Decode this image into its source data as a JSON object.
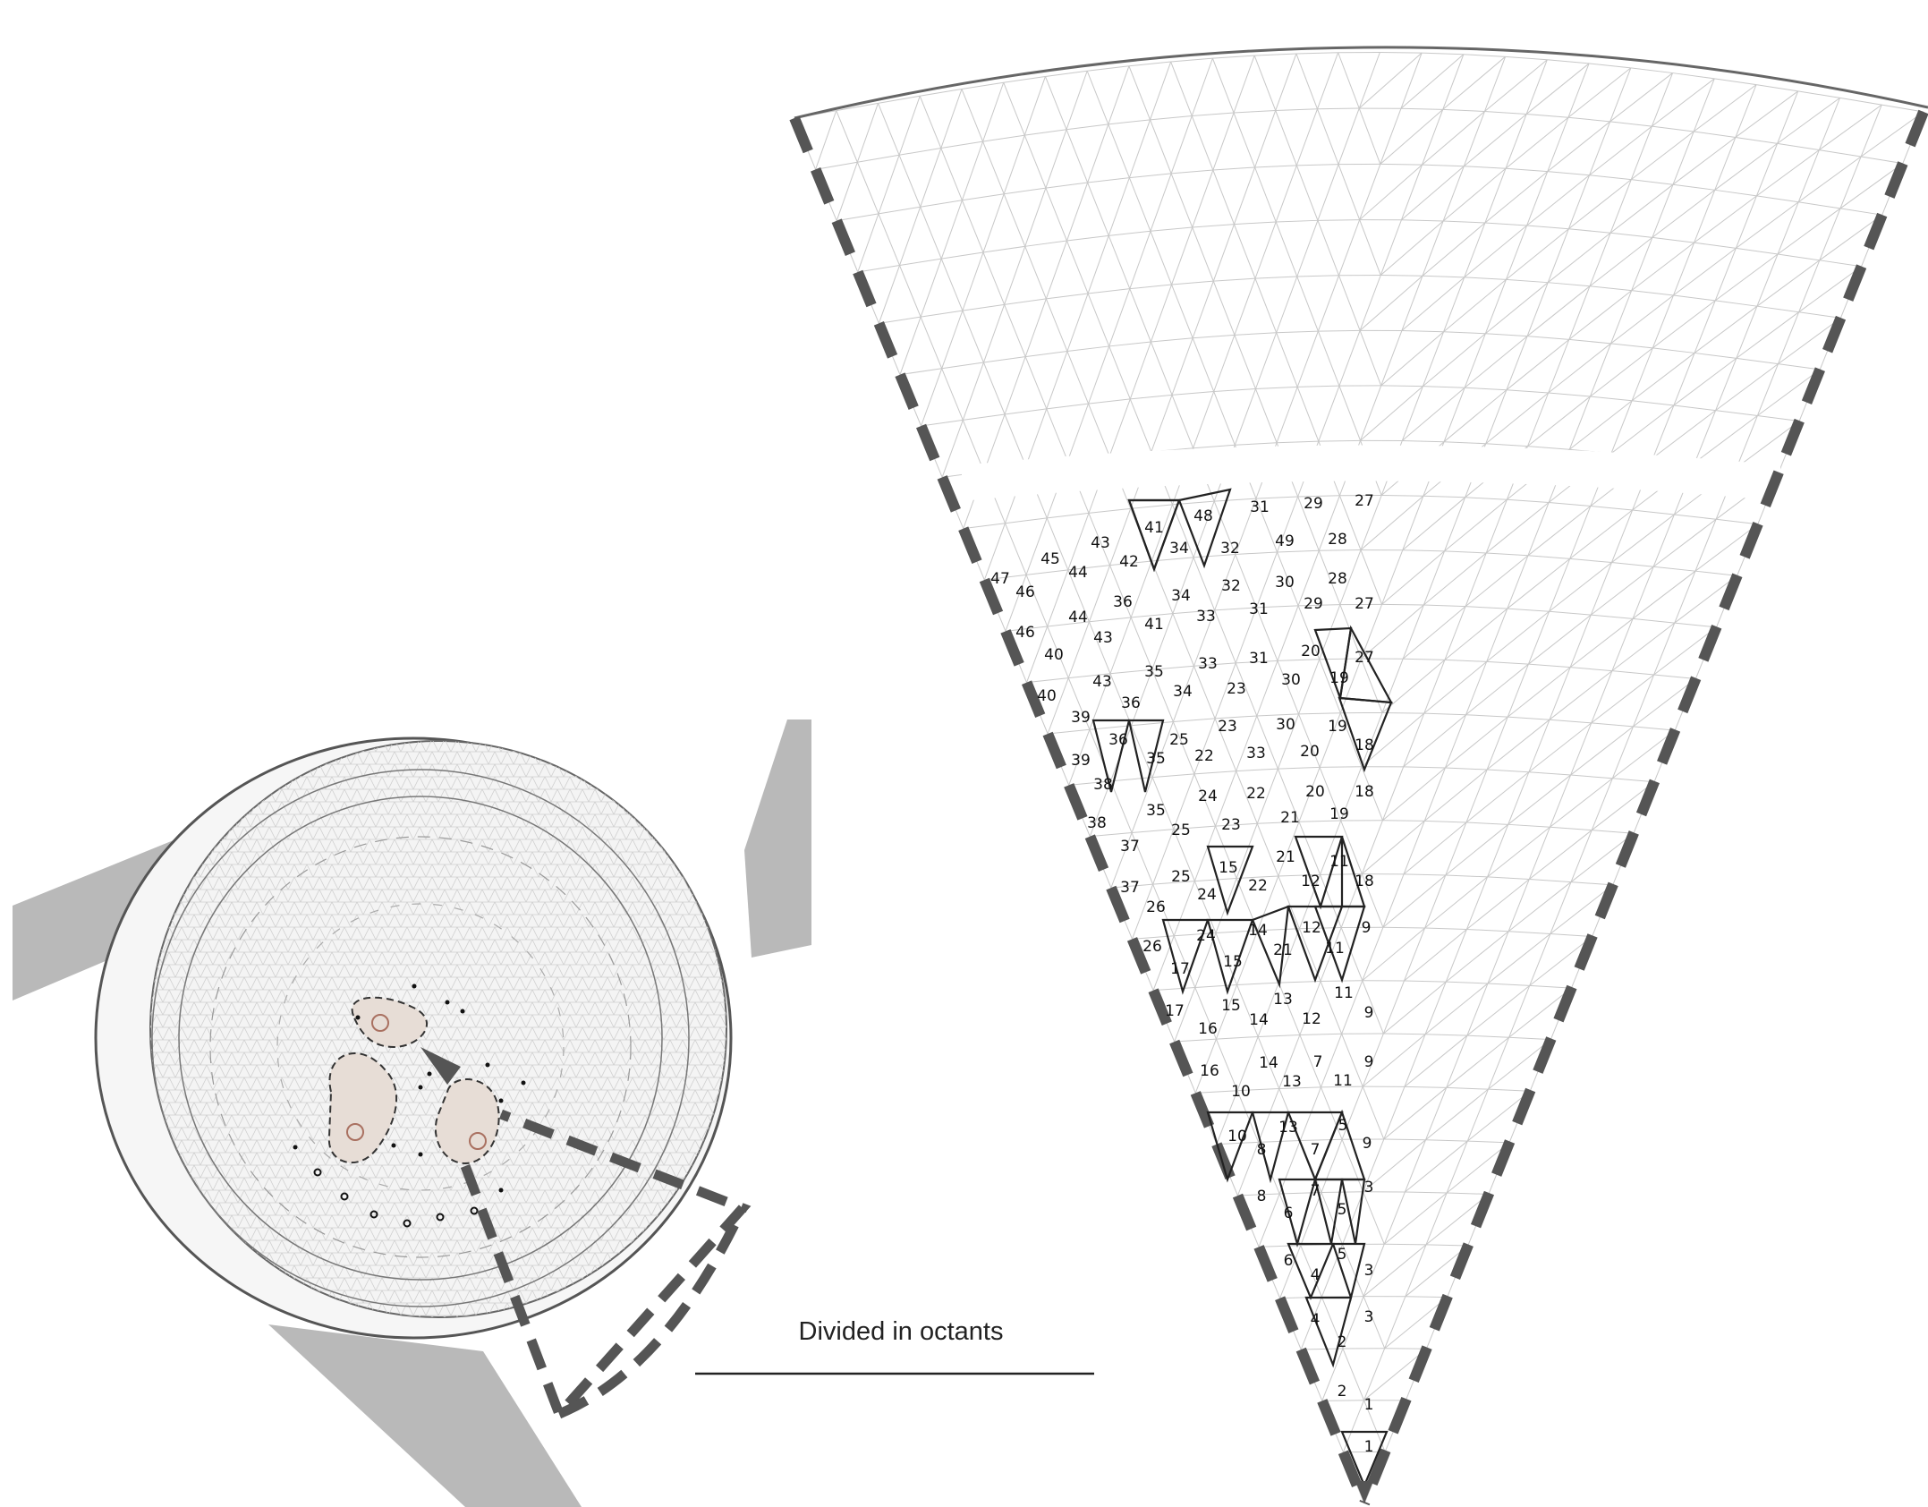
{
  "caption": "Divided in octants",
  "colors": {
    "grid": "#c8c8c8",
    "dashed_border": "#555555",
    "piece_outline": "#222222",
    "road": "#b9b9b9",
    "disk_fill": "#f4f4f4",
    "blob_fill": "#e7ddd6",
    "blob_outline": "#a97060"
  },
  "triangle_numbers": [
    "27",
    "29",
    "31",
    "48",
    "41",
    "34",
    "32",
    "28",
    "49",
    "43",
    "42",
    "45",
    "44",
    "47",
    "46",
    "28",
    "30",
    "32",
    "34",
    "36",
    "29",
    "27",
    "31",
    "33",
    "41",
    "44",
    "46",
    "43",
    "40",
    "20",
    "27",
    "19",
    "31",
    "33",
    "35",
    "30",
    "23",
    "34",
    "43",
    "36",
    "40",
    "39",
    "25",
    "36",
    "23",
    "30",
    "19",
    "18",
    "35",
    "33",
    "22",
    "20",
    "39",
    "38",
    "24",
    "22",
    "20",
    "18",
    "35",
    "25",
    "23",
    "21",
    "19",
    "38",
    "37",
    "15",
    "21",
    "11",
    "25",
    "22",
    "12",
    "18",
    "24",
    "37",
    "26",
    "14",
    "12",
    "9",
    "26",
    "24",
    "21",
    "11",
    "15",
    "17",
    "13",
    "11",
    "17",
    "15",
    "9",
    "16",
    "14",
    "12",
    "16",
    "14",
    "7",
    "9",
    "10",
    "13",
    "11",
    "13",
    "10",
    "5",
    "8",
    "7",
    "9",
    "7",
    "3",
    "8",
    "5",
    "6",
    "5",
    "6",
    "4",
    "3",
    "4",
    "3",
    "2",
    "2",
    "1",
    "1"
  ]
}
